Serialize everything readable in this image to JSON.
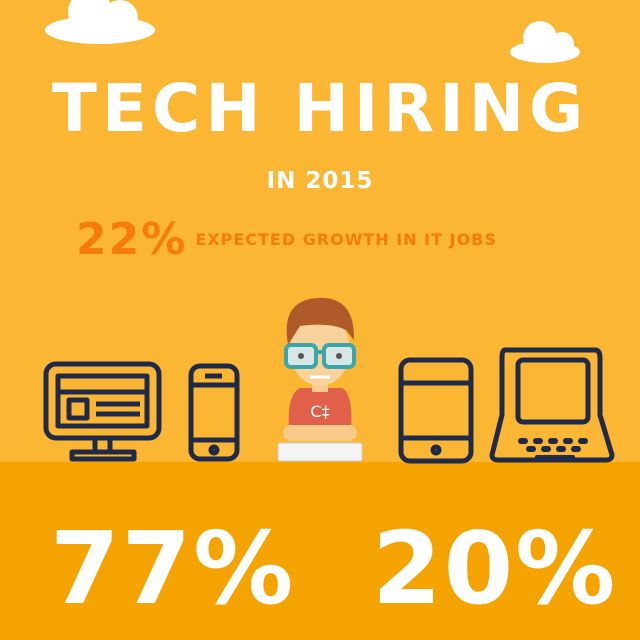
{
  "header": {
    "title": "TECH HIRING",
    "subtitle": "IN 2015"
  },
  "growth": {
    "percent": "22%",
    "label": "EXPECTED GROWTH IN IT JOBS"
  },
  "stats": [
    {
      "value": "77%"
    },
    {
      "value": "20%"
    }
  ],
  "character": {
    "shirt_text": "C‡"
  },
  "icons": [
    "cloud-icon",
    "desktop-monitor-icon",
    "smartphone-icon",
    "developer-character",
    "tablet-icon",
    "laptop-icon"
  ],
  "colors": {
    "background": "#FBB634",
    "band": "#F5A300",
    "accent": "#F77B0A",
    "icon_stroke": "#1F2A48",
    "text": "#FFFFFF"
  }
}
